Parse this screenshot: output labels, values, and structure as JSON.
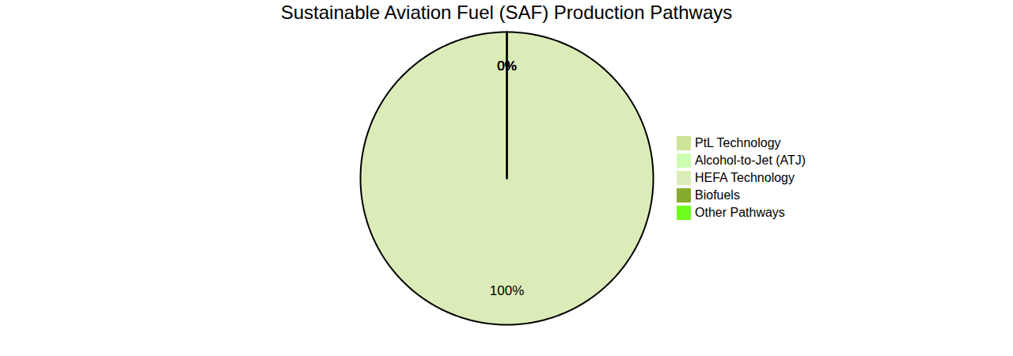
{
  "chart_data": {
    "type": "pie",
    "title": "Sustainable Aviation Fuel (SAF) Production Pathways",
    "categories": [
      "PtL Technology",
      "Alcohol-to-Jet (ATJ)",
      "HEFA Technology",
      "Biofuels",
      "Other Pathways"
    ],
    "values": [
      0,
      0,
      100,
      0,
      0
    ],
    "value_labels": [
      "0%",
      "0%",
      "100%",
      "0%",
      "0%"
    ],
    "colors": [
      "#cde498",
      "#cdffb2",
      "#dcecb8",
      "#87ab2e",
      "#6eff1f"
    ],
    "data_labels": true,
    "legend": "right"
  }
}
